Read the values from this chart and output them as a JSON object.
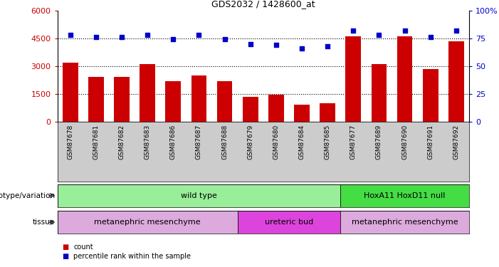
{
  "title": "GDS2032 / 1428600_at",
  "samples": [
    "GSM87678",
    "GSM87681",
    "GSM87682",
    "GSM87683",
    "GSM87686",
    "GSM87687",
    "GSM87688",
    "GSM87679",
    "GSM87680",
    "GSM87684",
    "GSM87685",
    "GSM87677",
    "GSM87689",
    "GSM87690",
    "GSM87691",
    "GSM87692"
  ],
  "counts": [
    3200,
    2400,
    2400,
    3100,
    2200,
    2500,
    2200,
    1350,
    1450,
    900,
    980,
    4600,
    3100,
    4600,
    2850,
    4350
  ],
  "percentiles": [
    78,
    76,
    76,
    78,
    74,
    78,
    74,
    70,
    69,
    66,
    68,
    82,
    78,
    82,
    76,
    82
  ],
  "bar_color": "#cc0000",
  "dot_color": "#0000cc",
  "ylim_left": [
    0,
    6000
  ],
  "ylim_right": [
    0,
    100
  ],
  "yticks_left": [
    0,
    1500,
    3000,
    4500,
    6000
  ],
  "ytick_labels_left": [
    "0",
    "1500",
    "3000",
    "4500",
    "6000"
  ],
  "yticks_right": [
    0,
    25,
    50,
    75,
    100
  ],
  "ytick_labels_right": [
    "0",
    "25",
    "50",
    "75",
    "100%"
  ],
  "grid_values": [
    1500,
    3000,
    4500
  ],
  "genotype_groups": [
    {
      "label": "wild type",
      "start": 0,
      "end": 11,
      "color": "#99ee99"
    },
    {
      "label": "HoxA11 HoxD11 null",
      "start": 11,
      "end": 16,
      "color": "#44dd44"
    }
  ],
  "tissue_groups": [
    {
      "label": "metanephric mesenchyme",
      "start": 0,
      "end": 7,
      "color": "#ddaadd"
    },
    {
      "label": "ureteric bud",
      "start": 7,
      "end": 11,
      "color": "#dd44dd"
    },
    {
      "label": "metanephric mesenchyme",
      "start": 11,
      "end": 16,
      "color": "#ddaadd"
    }
  ],
  "sample_bg": "#cccccc",
  "plot_bg": "#ffffff",
  "fig_bg": "#ffffff"
}
